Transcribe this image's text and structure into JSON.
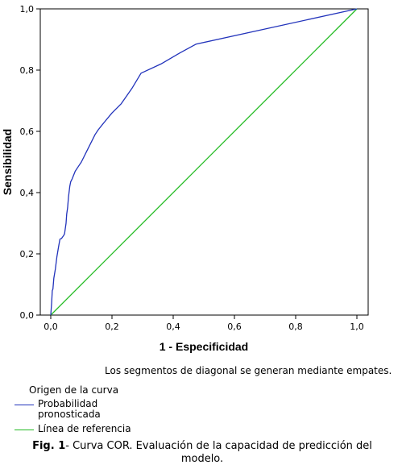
{
  "chart_data": {
    "type": "line",
    "xlabel": "1 - Especificidad",
    "ylabel": "Sensibilidad",
    "xlim": [
      0,
      1
    ],
    "ylim": [
      0,
      1
    ],
    "x_ticks": [
      "0,0",
      "0,2",
      "0,4",
      "0,6",
      "0,8",
      "1,0"
    ],
    "y_ticks": [
      "0,0",
      "0,2",
      "0,4",
      "0,6",
      "0,8",
      "1,0"
    ],
    "grid": false,
    "legend_title": "Origen de la curva",
    "legend_position": "bottom-left",
    "series": [
      {
        "name": "Probabilidad pronosticada",
        "color": "#2233bb",
        "x": [
          0.0,
          0.003,
          0.005,
          0.007,
          0.01,
          0.015,
          0.02,
          0.025,
          0.03,
          0.035,
          0.042,
          0.045,
          0.05,
          0.052,
          0.055,
          0.058,
          0.062,
          0.065,
          0.07,
          0.08,
          0.09,
          0.1,
          0.115,
          0.13,
          0.145,
          0.155,
          0.175,
          0.2,
          0.23,
          0.265,
          0.295,
          0.36,
          0.42,
          0.475,
          1.0
        ],
        "y": [
          0.0,
          0.04,
          0.08,
          0.085,
          0.12,
          0.15,
          0.19,
          0.22,
          0.248,
          0.25,
          0.26,
          0.265,
          0.3,
          0.33,
          0.35,
          0.385,
          0.42,
          0.435,
          0.445,
          0.47,
          0.485,
          0.5,
          0.53,
          0.56,
          0.59,
          0.605,
          0.63,
          0.66,
          0.69,
          0.74,
          0.79,
          0.82,
          0.855,
          0.885,
          1.0
        ]
      },
      {
        "name": "Línea de referencia",
        "color": "#22bb22",
        "x": [
          0.0,
          1.0
        ],
        "y": [
          0.0,
          1.0
        ]
      }
    ]
  },
  "note": "Los segmentos de diagonal se generan mediante empates.",
  "caption": {
    "label": "Fig. 1",
    "text": "- Curva COR. Evaluación de la capacidad de predicción del modelo."
  }
}
